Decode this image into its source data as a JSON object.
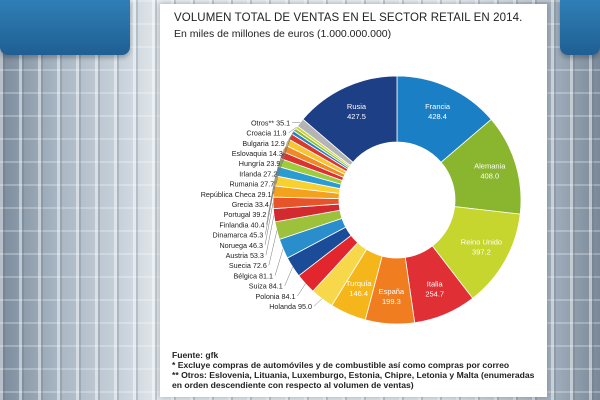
{
  "chart_data": {
    "type": "pie",
    "title": "VOLUMEN TOTAL DE VENTAS EN EL SECTOR RETAIL EN 2014.",
    "subtitle": "En miles de millones de euros (1.000.000.000)",
    "style": "donut",
    "slices": [
      {
        "label": "Francia",
        "value": 428.4,
        "color": "#1a7fc5"
      },
      {
        "label": "Alemania",
        "value": 408.0,
        "color": "#8ab52e"
      },
      {
        "label": "Reino Unido",
        "value": 397.2,
        "color": "#c7d62e"
      },
      {
        "label": "Italia",
        "value": 254.7,
        "color": "#e02f35"
      },
      {
        "label": "España",
        "value": 199.3,
        "color": "#f07d20"
      },
      {
        "label": "Turquía",
        "value": 146.4,
        "color": "#f5b61c"
      },
      {
        "label": "Holanda",
        "value": 95.0,
        "color": "#f7d84a"
      },
      {
        "label": "Polonia",
        "value": 84.1,
        "color": "#e3262d"
      },
      {
        "label": "Suiza",
        "value": 84.1,
        "color": "#1b4c97"
      },
      {
        "label": "Bélgica",
        "value": 81.1,
        "color": "#2a8ecd"
      },
      {
        "label": "Suecia",
        "value": 72.6,
        "color": "#9dc13a"
      },
      {
        "label": "Austria",
        "value": 53.3,
        "color": "#d22a2f"
      },
      {
        "label": "Noruega",
        "value": 46.3,
        "color": "#e8542a"
      },
      {
        "label": "Dinamarca",
        "value": 45.3,
        "color": "#f4a11d"
      },
      {
        "label": "Finlandia",
        "value": 40.4,
        "color": "#f8d030"
      },
      {
        "label": "Portugal",
        "value": 39.2,
        "color": "#2b9bd4"
      },
      {
        "label": "Grecia",
        "value": 33.4,
        "color": "#9fcc3d"
      },
      {
        "label": "República Checa",
        "value": 29.1,
        "color": "#d9322f"
      },
      {
        "label": "Rumania",
        "value": 27.7,
        "color": "#f08a25"
      },
      {
        "label": "Irlanda",
        "value": 27.2,
        "color": "#f6c531"
      },
      {
        "label": "Hungría",
        "value": 23.9,
        "color": "#d73a2d"
      },
      {
        "label": "Eslovaquia",
        "value": 14.3,
        "color": "#2b7fc2"
      },
      {
        "label": "Bulgaria",
        "value": 12.9,
        "color": "#8cbe34"
      },
      {
        "label": "Croacia",
        "value": 11.9,
        "color": "#c9d535"
      },
      {
        "label": "Otros**",
        "value": 35.1,
        "color": "#b4b4b4"
      },
      {
        "label": "Rusia",
        "value": 427.5,
        "color": "#1d3f86"
      }
    ],
    "labels_text": {
      "Francia": "Francia",
      "Alemania": "Alemania",
      "Reino Unido": "Reino Unido",
      "Italia": "Italia",
      "España": "España",
      "Turquía": "Turquía",
      "Holanda": "Holanda",
      "Polonia": "Polonia",
      "Suiza": "Suiza",
      "Bélgica": "Bélgica",
      "Suecia": "Suecia",
      "Austria": "Austria",
      "Noruega": "Noruega",
      "Dinamarca": "Dinamarca",
      "Finlandia": "Finlandia",
      "Portugal": "Portugal",
      "Grecia": "Grecia",
      "República Checa": "República Checa",
      "Rumania": "Rumania",
      "Irlanda": "Irlanda",
      "Hungría": "Hungría",
      "Eslovaquia": "Eslovaquia",
      "Bulgaria": "Bulgaria",
      "Croacia": "Croacia",
      "Otros**": "Otros**",
      "Rusia": "Rusia"
    },
    "value_labels": {
      "Francia": "428.4",
      "Alemania": "408.0",
      "Reino Unido": "397.2",
      "Italia": "254.7",
      "España": "199.3",
      "Turquía": "146.4",
      "Holanda": "95.0",
      "Polonia": "84.1",
      "Suiza": "84.1",
      "Bélgica": "81.1",
      "Suecia": "72.6",
      "Austria": "53.3",
      "Noruega": "46.3",
      "Dinamarca": "45.3",
      "Finlandia": "40.4",
      "Portugal": "39.2",
      "Grecia": "33.4",
      "República Checa": "29.1",
      "Rumania": "27.7",
      "Irlanda": "27.2",
      "Hungría": "23.9",
      "Eslovaquia": "14.3",
      "Bulgaria": "12.9",
      "Croacia": "11.9",
      "Otros**": "35.1",
      "Rusia": "427.5"
    },
    "inside_labels": [
      "Francia",
      "Alemania",
      "Reino Unido",
      "Italia",
      "España",
      "Turquía",
      "Rusia"
    ]
  },
  "notes": {
    "source": "Fuente: gfk",
    "note1": "* Excluye compras de automóviles y de combustible así como compras por correo",
    "note2": "** Otros: Eslovenia, Lituania, Luxemburgo, Estonia, Chipre, Letonia y Malta (enumeradas en orden descendiente con respecto al volumen de ventas)"
  }
}
